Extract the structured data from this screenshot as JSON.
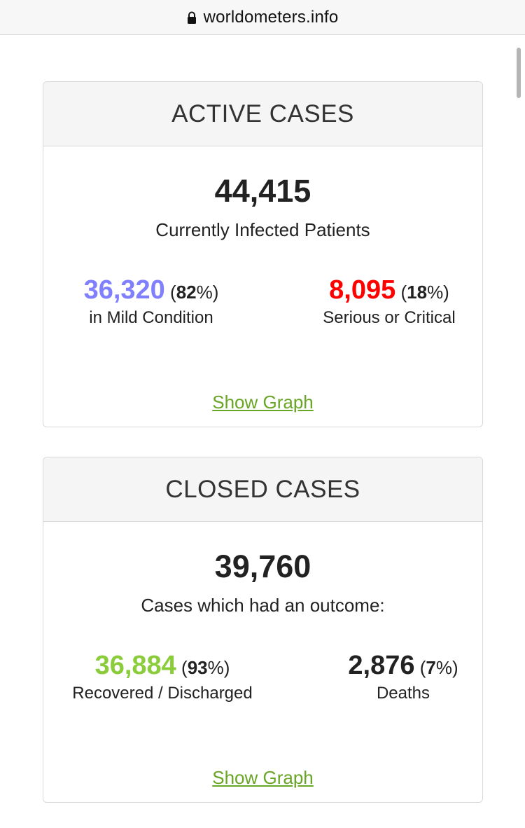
{
  "browser": {
    "url": "worldometers.info"
  },
  "active_cases": {
    "title": "ACTIVE CASES",
    "total": "44,415",
    "total_label": "Currently Infected Patients",
    "mild": {
      "number": "36,320",
      "percent": "82",
      "label": "in Mild Condition",
      "color": "#8080ff"
    },
    "serious": {
      "number": "8,095",
      "percent": "18",
      "label": "Serious or Critical",
      "color": "#ff0000"
    },
    "show_graph": "Show Graph"
  },
  "closed_cases": {
    "title": "CLOSED CASES",
    "total": "39,760",
    "total_label": "Cases which had an outcome:",
    "recovered": {
      "number": "36,884",
      "percent": "93",
      "label": "Recovered / Discharged",
      "color": "#8acc3a"
    },
    "deaths": {
      "number": "2,876",
      "percent": "7",
      "label": "Deaths",
      "color": "#222222"
    },
    "show_graph": "Show Graph"
  },
  "colors": {
    "link": "#69a527",
    "header_bg": "#f5f5f5",
    "border": "#d9d9d9"
  },
  "icons": {
    "lock": "lock-icon"
  }
}
